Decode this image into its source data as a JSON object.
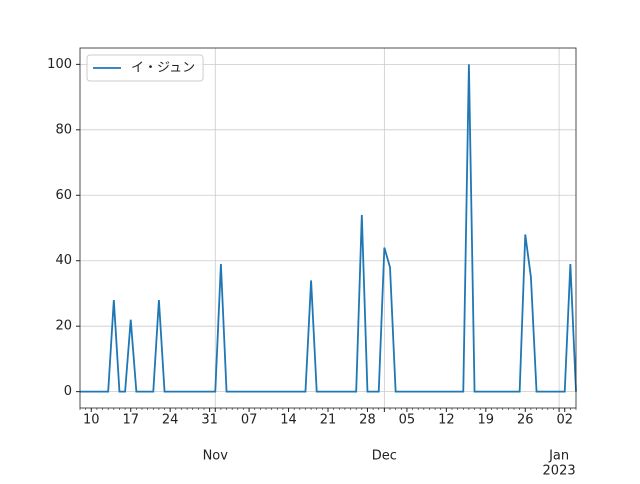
{
  "chart_data": {
    "type": "line",
    "x": [
      "2022-10-08",
      "2022-10-09",
      "2022-10-10",
      "2022-10-11",
      "2022-10-12",
      "2022-10-13",
      "2022-10-14",
      "2022-10-15",
      "2022-10-16",
      "2022-10-17",
      "2022-10-18",
      "2022-10-19",
      "2022-10-20",
      "2022-10-21",
      "2022-10-22",
      "2022-10-23",
      "2022-10-24",
      "2022-10-25",
      "2022-10-26",
      "2022-10-27",
      "2022-10-28",
      "2022-10-29",
      "2022-10-30",
      "2022-10-31",
      "2022-11-01",
      "2022-11-02",
      "2022-11-03",
      "2022-11-04",
      "2022-11-05",
      "2022-11-06",
      "2022-11-07",
      "2022-11-08",
      "2022-11-09",
      "2022-11-10",
      "2022-11-11",
      "2022-11-12",
      "2022-11-13",
      "2022-11-14",
      "2022-11-15",
      "2022-11-16",
      "2022-11-17",
      "2022-11-18",
      "2022-11-19",
      "2022-11-20",
      "2022-11-21",
      "2022-11-22",
      "2022-11-23",
      "2022-11-24",
      "2022-11-25",
      "2022-11-26",
      "2022-11-27",
      "2022-11-28",
      "2022-11-29",
      "2022-11-30",
      "2022-12-01",
      "2022-12-02",
      "2022-12-03",
      "2022-12-04",
      "2022-12-05",
      "2022-12-06",
      "2022-12-07",
      "2022-12-08",
      "2022-12-09",
      "2022-12-10",
      "2022-12-11",
      "2022-12-12",
      "2022-12-13",
      "2022-12-14",
      "2022-12-15",
      "2022-12-16",
      "2022-12-17",
      "2022-12-18",
      "2022-12-19",
      "2022-12-20",
      "2022-12-21",
      "2022-12-22",
      "2022-12-23",
      "2022-12-24",
      "2022-12-25",
      "2022-12-26",
      "2022-12-27",
      "2022-12-28",
      "2022-12-29",
      "2022-12-30",
      "2022-12-31",
      "2023-01-01",
      "2023-01-02",
      "2023-01-03",
      "2023-01-04"
    ],
    "series": [
      {
        "name": "イ・ジュン",
        "color": "#1f77b4",
        "values": [
          0,
          0,
          0,
          0,
          0,
          0,
          28,
          0,
          0,
          22,
          0,
          0,
          0,
          0,
          28,
          0,
          0,
          0,
          0,
          0,
          0,
          0,
          0,
          0,
          0,
          39,
          0,
          0,
          0,
          0,
          0,
          0,
          0,
          0,
          0,
          0,
          0,
          0,
          0,
          0,
          0,
          34,
          0,
          0,
          0,
          0,
          0,
          0,
          0,
          0,
          54,
          0,
          0,
          0,
          44,
          38,
          0,
          0,
          0,
          0,
          0,
          0,
          0,
          0,
          0,
          0,
          0,
          0,
          0,
          100,
          0,
          0,
          0,
          0,
          0,
          0,
          0,
          0,
          0,
          48,
          35,
          0,
          0,
          0,
          0,
          0,
          0,
          39,
          0
        ]
      }
    ],
    "xlim": [
      "2022-10-08",
      "2023-01-04"
    ],
    "xticks": [
      {
        "value": "2022-10-10",
        "label": "10"
      },
      {
        "value": "2022-10-17",
        "label": "17"
      },
      {
        "value": "2022-10-24",
        "label": "24"
      },
      {
        "value": "2022-10-31",
        "label": "31"
      },
      {
        "value": "2022-11-07",
        "label": "07"
      },
      {
        "value": "2022-11-14",
        "label": "14"
      },
      {
        "value": "2022-11-21",
        "label": "21"
      },
      {
        "value": "2022-11-28",
        "label": "28"
      },
      {
        "value": "2022-12-05",
        "label": "05"
      },
      {
        "value": "2022-12-12",
        "label": "12"
      },
      {
        "value": "2022-12-19",
        "label": "19"
      },
      {
        "value": "2022-12-26",
        "label": "26"
      },
      {
        "value": "2023-01-02",
        "label": "02"
      }
    ],
    "xticks_major": [
      {
        "value": "2022-11-01",
        "label": "Nov"
      },
      {
        "value": "2022-12-01",
        "label": "Dec"
      },
      {
        "value": "2023-01-01",
        "label": "Jan"
      }
    ],
    "x_offset_label": "2023",
    "ylim": [
      -5,
      105
    ],
    "yticks": [
      0,
      20,
      40,
      60,
      80,
      100
    ],
    "grid": true,
    "legend": "upper left"
  }
}
